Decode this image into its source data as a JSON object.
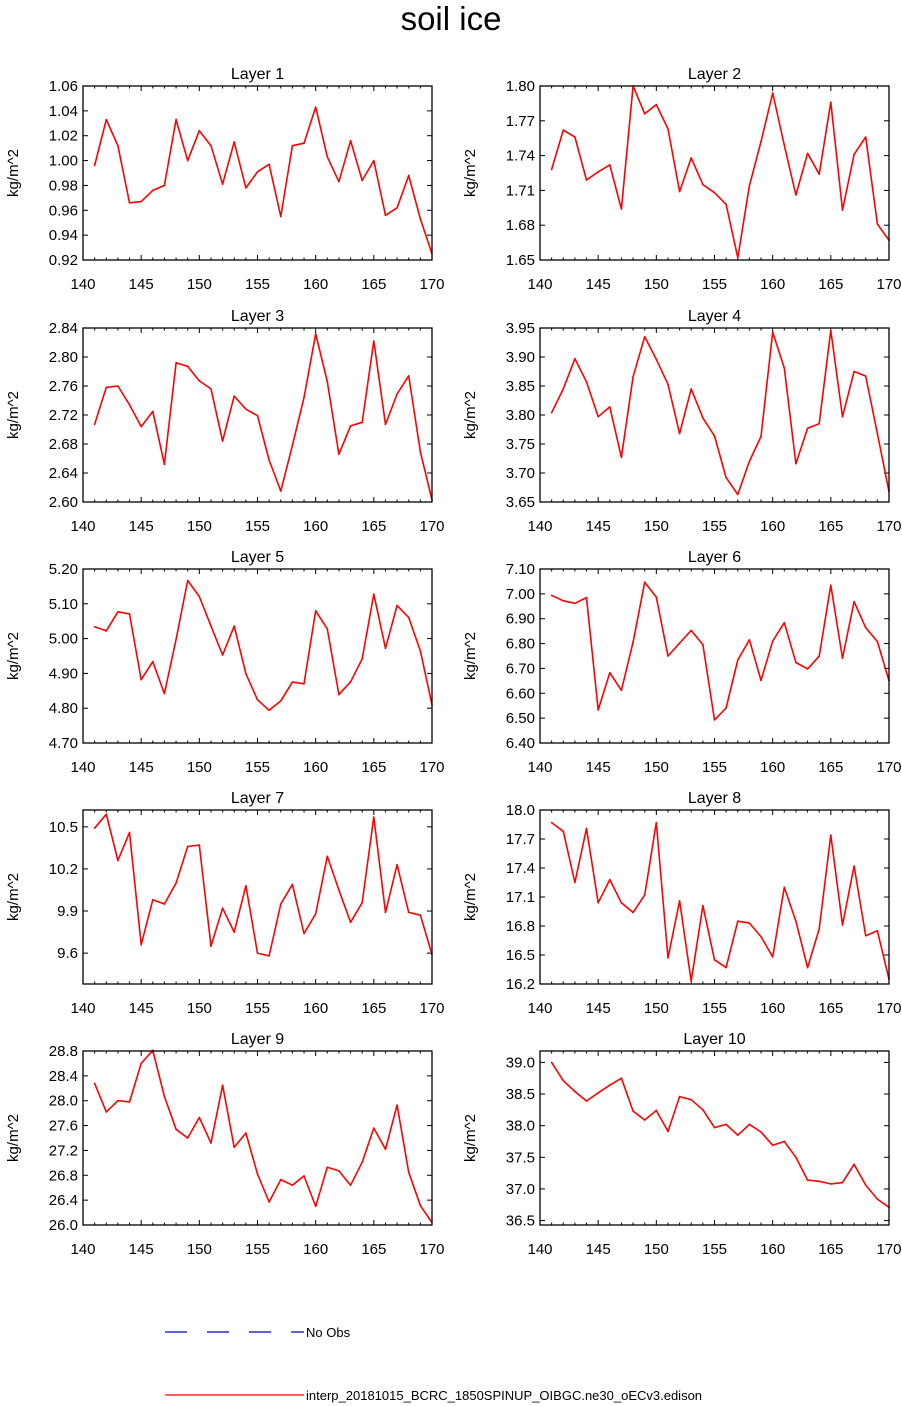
{
  "title": "soil ice",
  "legend": {
    "entries": [
      {
        "label": "No Obs",
        "color": "#0000cc",
        "style": "dashed"
      },
      {
        "label": "interp_20181015_BCRC_1850SPINUP_OIBGC.ne30_oECv3.edison",
        "color": "#ff0000",
        "style": "solid"
      }
    ]
  },
  "chart_data": [
    {
      "type": "line",
      "title": "Layer 1",
      "ylabel": "kg/m^2",
      "xlim": [
        140,
        170
      ],
      "xticks": [
        "140",
        "145",
        "150",
        "155",
        "160",
        "165",
        "170"
      ],
      "ylim": [
        0.92,
        1.06
      ],
      "yticks": [
        "0.92",
        "0.94",
        "0.96",
        "0.98",
        "1.00",
        "1.02",
        "1.04",
        "1.06"
      ],
      "x": [
        141,
        142,
        143,
        144,
        145,
        146,
        147,
        148,
        149,
        150,
        151,
        152,
        153,
        154,
        155,
        156,
        157,
        158,
        159,
        160,
        161,
        162,
        163,
        164,
        165,
        166,
        167,
        168,
        169,
        170
      ],
      "series": [
        {
          "color": "#ff0000",
          "values": [
            0.996,
            1.033,
            1.012,
            0.966,
            0.967,
            0.976,
            0.98,
            1.033,
            1.0,
            1.024,
            1.012,
            0.981,
            1.015,
            0.978,
            0.991,
            0.997,
            0.955,
            1.012,
            1.014,
            1.043,
            1.003,
            0.983,
            1.016,
            0.984,
            1.0,
            0.956,
            0.962,
            0.988,
            0.953,
            0.925
          ]
        }
      ]
    },
    {
      "type": "line",
      "title": "Layer 2",
      "ylabel": "kg/m^2",
      "xlim": [
        140,
        170
      ],
      "xticks": [
        "140",
        "145",
        "150",
        "155",
        "160",
        "165",
        "170"
      ],
      "ylim": [
        1.65,
        1.8
      ],
      "yticks": [
        "1.65",
        "1.68",
        "1.71",
        "1.74",
        "1.77",
        "1.80"
      ],
      "x": [
        141,
        142,
        143,
        144,
        145,
        146,
        147,
        148,
        149,
        150,
        151,
        152,
        153,
        154,
        155,
        156,
        157,
        158,
        159,
        160,
        161,
        162,
        163,
        164,
        165,
        166,
        167,
        168,
        169,
        170
      ],
      "series": [
        {
          "color": "#ff0000",
          "values": [
            1.728,
            1.762,
            1.756,
            1.719,
            1.726,
            1.732,
            1.694,
            1.8,
            1.776,
            1.784,
            1.763,
            1.709,
            1.738,
            1.715,
            1.708,
            1.698,
            1.652,
            1.714,
            1.752,
            1.794,
            1.749,
            1.706,
            1.742,
            1.724,
            1.786,
            1.693,
            1.741,
            1.756,
            1.681,
            1.667
          ]
        }
      ]
    },
    {
      "type": "line",
      "title": "Layer 3",
      "ylabel": "kg/m^2",
      "xlim": [
        140,
        170
      ],
      "xticks": [
        "140",
        "145",
        "150",
        "155",
        "160",
        "165",
        "170"
      ],
      "ylim": [
        2.6,
        2.84
      ],
      "yticks": [
        "2.60",
        "2.64",
        "2.68",
        "2.72",
        "2.76",
        "2.80",
        "2.84"
      ],
      "x": [
        141,
        142,
        143,
        144,
        145,
        146,
        147,
        148,
        149,
        150,
        151,
        152,
        153,
        154,
        155,
        156,
        157,
        158,
        159,
        160,
        161,
        162,
        163,
        164,
        165,
        166,
        167,
        168,
        169,
        170
      ],
      "series": [
        {
          "color": "#ff0000",
          "values": [
            2.707,
            2.758,
            2.76,
            2.734,
            2.704,
            2.725,
            2.652,
            2.792,
            2.787,
            2.767,
            2.756,
            2.684,
            2.746,
            2.728,
            2.719,
            2.658,
            2.615,
            2.678,
            2.744,
            2.832,
            2.766,
            2.666,
            2.705,
            2.71,
            2.822,
            2.707,
            2.749,
            2.774,
            2.669,
            2.603
          ]
        }
      ]
    },
    {
      "type": "line",
      "title": "Layer 4",
      "ylabel": "kg/m^2",
      "xlim": [
        140,
        170
      ],
      "xticks": [
        "140",
        "145",
        "150",
        "155",
        "160",
        "165",
        "170"
      ],
      "ylim": [
        3.65,
        3.95
      ],
      "yticks": [
        "3.65",
        "3.70",
        "3.75",
        "3.80",
        "3.85",
        "3.90",
        "3.95"
      ],
      "x": [
        141,
        142,
        143,
        144,
        145,
        146,
        147,
        148,
        149,
        150,
        151,
        152,
        153,
        154,
        155,
        156,
        157,
        158,
        159,
        160,
        161,
        162,
        163,
        164,
        165,
        166,
        167,
        168,
        169,
        170
      ],
      "series": [
        {
          "color": "#ff0000",
          "values": [
            3.804,
            3.845,
            3.897,
            3.857,
            3.797,
            3.814,
            3.727,
            3.866,
            3.935,
            3.896,
            3.853,
            3.768,
            3.845,
            3.795,
            3.764,
            3.692,
            3.663,
            3.72,
            3.763,
            3.943,
            3.881,
            3.716,
            3.777,
            3.785,
            3.946,
            3.797,
            3.875,
            3.867,
            3.768,
            3.668
          ]
        }
      ]
    },
    {
      "type": "line",
      "title": "Layer 5",
      "ylabel": "kg/m^2",
      "xlim": [
        140,
        170
      ],
      "xticks": [
        "140",
        "145",
        "150",
        "155",
        "160",
        "165",
        "170"
      ],
      "ylim": [
        4.7,
        5.2
      ],
      "yticks": [
        "4.70",
        "4.80",
        "4.90",
        "5.00",
        "5.10",
        "5.20"
      ],
      "x": [
        141,
        142,
        143,
        144,
        145,
        146,
        147,
        148,
        149,
        150,
        151,
        152,
        153,
        154,
        155,
        156,
        157,
        158,
        159,
        160,
        161,
        162,
        163,
        164,
        165,
        166,
        167,
        168,
        169,
        170
      ],
      "series": [
        {
          "color": "#ff0000",
          "values": [
            5.034,
            5.022,
            5.077,
            5.071,
            4.882,
            4.934,
            4.842,
            4.998,
            5.167,
            5.121,
            5.036,
            4.953,
            5.036,
            4.899,
            4.824,
            4.794,
            4.821,
            4.875,
            4.87,
            5.08,
            5.028,
            4.839,
            4.876,
            4.942,
            5.128,
            4.972,
            5.095,
            5.061,
            4.964,
            4.81
          ]
        }
      ]
    },
    {
      "type": "line",
      "title": "Layer 6",
      "ylabel": "kg/m^2",
      "xlim": [
        140,
        170
      ],
      "xticks": [
        "140",
        "145",
        "150",
        "155",
        "160",
        "165",
        "170"
      ],
      "ylim": [
        6.4,
        7.1
      ],
      "yticks": [
        "6.40",
        "6.50",
        "6.60",
        "6.70",
        "6.80",
        "6.90",
        "7.00",
        "7.10"
      ],
      "x": [
        141,
        142,
        143,
        144,
        145,
        146,
        147,
        148,
        149,
        150,
        151,
        152,
        153,
        154,
        155,
        156,
        157,
        158,
        159,
        160,
        161,
        162,
        163,
        164,
        165,
        166,
        167,
        168,
        169,
        170
      ],
      "series": [
        {
          "color": "#ff0000",
          "values": [
            6.994,
            6.972,
            6.962,
            6.985,
            6.533,
            6.683,
            6.612,
            6.806,
            7.047,
            6.987,
            6.75,
            6.802,
            6.853,
            6.796,
            6.493,
            6.541,
            6.734,
            6.815,
            6.652,
            6.81,
            6.884,
            6.724,
            6.698,
            6.749,
            7.035,
            6.741,
            6.969,
            6.864,
            6.808,
            6.651
          ]
        }
      ]
    },
    {
      "type": "line",
      "title": "Layer 7",
      "ylabel": "kg/m^2",
      "xlim": [
        140,
        170
      ],
      "xticks": [
        "140",
        "145",
        "150",
        "155",
        "160",
        "165",
        "170"
      ],
      "ylim": [
        9.38,
        10.62
      ],
      "yticks": [
        "9.6",
        "9.9",
        "10.2",
        "10.5"
      ],
      "ytickvalues": [
        9.6,
        9.9,
        10.2,
        10.5
      ],
      "x": [
        141,
        142,
        143,
        144,
        145,
        146,
        147,
        148,
        149,
        150,
        151,
        152,
        153,
        154,
        155,
        156,
        157,
        158,
        159,
        160,
        161,
        162,
        163,
        164,
        165,
        166,
        167,
        168,
        169,
        170
      ],
      "series": [
        {
          "color": "#ff0000",
          "values": [
            10.49,
            10.59,
            10.26,
            10.46,
            9.66,
            9.98,
            9.95,
            10.1,
            10.36,
            10.37,
            9.65,
            9.92,
            9.75,
            10.08,
            9.6,
            9.58,
            9.95,
            10.09,
            9.74,
            9.88,
            10.29,
            10.05,
            9.82,
            9.96,
            10.57,
            9.89,
            10.23,
            9.89,
            9.87,
            9.59
          ]
        }
      ]
    },
    {
      "type": "line",
      "title": "Layer 8",
      "ylabel": "kg/m^2",
      "xlim": [
        140,
        170
      ],
      "xticks": [
        "140",
        "145",
        "150",
        "155",
        "160",
        "165",
        "170"
      ],
      "ylim": [
        16.2,
        18.0
      ],
      "yticks": [
        "16.2",
        "16.5",
        "16.8",
        "17.1",
        "17.4",
        "17.7",
        "18.0"
      ],
      "x": [
        141,
        142,
        143,
        144,
        145,
        146,
        147,
        148,
        149,
        150,
        151,
        152,
        153,
        154,
        155,
        156,
        157,
        158,
        159,
        160,
        161,
        162,
        163,
        164,
        165,
        166,
        167,
        168,
        169,
        170
      ],
      "series": [
        {
          "color": "#ff0000",
          "values": [
            17.87,
            17.78,
            17.25,
            17.81,
            17.04,
            17.28,
            17.04,
            16.94,
            17.12,
            17.87,
            16.47,
            17.06,
            16.23,
            17.01,
            16.45,
            16.37,
            16.85,
            16.83,
            16.69,
            16.48,
            17.2,
            16.85,
            16.37,
            16.77,
            17.74,
            16.81,
            17.42,
            16.7,
            16.75,
            16.25
          ]
        }
      ]
    },
    {
      "type": "line",
      "title": "Layer 9",
      "ylabel": "kg/m^2",
      "xlim": [
        140,
        170
      ],
      "xticks": [
        "140",
        "145",
        "150",
        "155",
        "160",
        "165",
        "170"
      ],
      "ylim": [
        26.0,
        28.8
      ],
      "yticks": [
        "26.0",
        "26.4",
        "26.8",
        "27.2",
        "27.6",
        "28.0",
        "28.4",
        "28.8"
      ],
      "x": [
        141,
        142,
        143,
        144,
        145,
        146,
        147,
        148,
        149,
        150,
        151,
        152,
        153,
        154,
        155,
        156,
        157,
        158,
        159,
        160,
        161,
        162,
        163,
        164,
        165,
        166,
        167,
        168,
        169,
        170
      ],
      "series": [
        {
          "color": "#ff0000",
          "values": [
            28.28,
            27.82,
            28.0,
            27.98,
            28.6,
            28.81,
            28.07,
            27.54,
            27.4,
            27.73,
            27.32,
            28.25,
            27.25,
            27.48,
            26.82,
            26.37,
            26.73,
            26.64,
            26.79,
            26.3,
            26.93,
            26.87,
            26.64,
            27.01,
            27.56,
            27.22,
            27.93,
            26.85,
            26.31,
            26.04
          ]
        }
      ]
    },
    {
      "type": "line",
      "title": "Layer 10",
      "ylabel": "kg/m^2",
      "xlim": [
        140,
        170
      ],
      "xticks": [
        "140",
        "145",
        "150",
        "155",
        "160",
        "165",
        "170"
      ],
      "ylim": [
        36.43,
        39.18
      ],
      "yticks": [
        "36.5",
        "37.0",
        "37.5",
        "38.0",
        "38.5",
        "39.0"
      ],
      "ytickvalues": [
        36.5,
        37.0,
        37.5,
        38.0,
        38.5,
        39.0
      ],
      "x": [
        141,
        142,
        143,
        144,
        145,
        146,
        147,
        148,
        149,
        150,
        151,
        152,
        153,
        154,
        155,
        156,
        157,
        158,
        159,
        160,
        161,
        162,
        163,
        164,
        165,
        166,
        167,
        168,
        169,
        170
      ],
      "series": [
        {
          "color": "#ff0000",
          "values": [
            39.0,
            38.71,
            38.54,
            38.39,
            38.52,
            38.64,
            38.75,
            38.23,
            38.09,
            38.24,
            37.91,
            38.46,
            38.41,
            38.25,
            37.97,
            38.02,
            37.85,
            38.02,
            37.9,
            37.69,
            37.75,
            37.5,
            37.14,
            37.12,
            37.08,
            37.1,
            37.39,
            37.06,
            36.84,
            36.71
          ]
        }
      ]
    }
  ]
}
